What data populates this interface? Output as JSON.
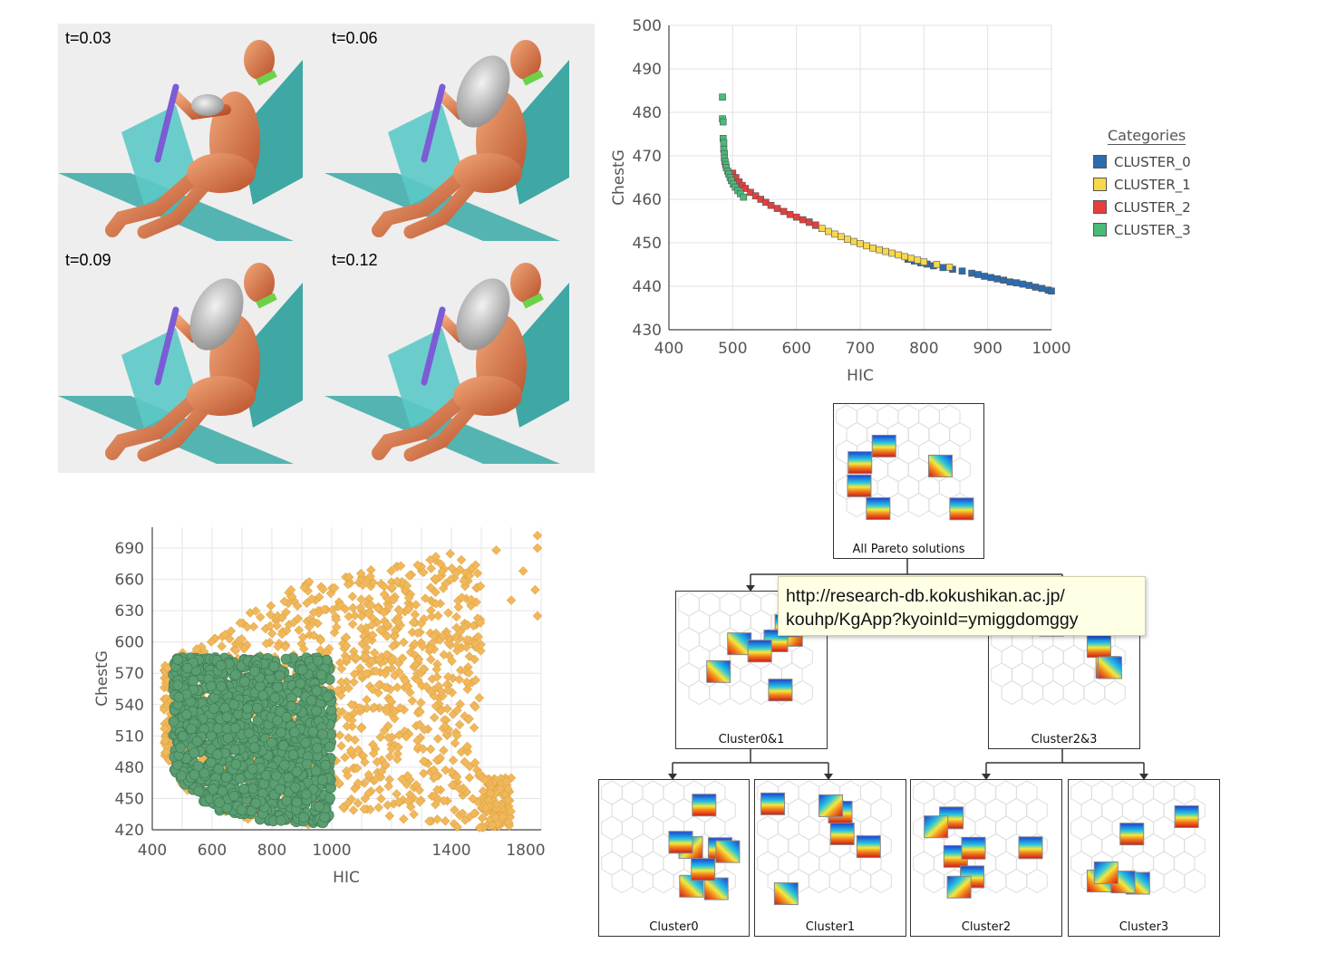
{
  "simulation": {
    "frames": [
      {
        "label": "t=0.03"
      },
      {
        "label": "t=0.06"
      },
      {
        "label": "t=0.09"
      },
      {
        "label": "t=0.12"
      }
    ]
  },
  "chart_top": {
    "type": "scatter",
    "xlabel": "HIC",
    "ylabel": "ChestG",
    "xlim": [
      400,
      1000
    ],
    "ylim": [
      430,
      500
    ],
    "xticks": [
      "400",
      "500",
      "600",
      "700",
      "800",
      "900",
      "1000"
    ],
    "yticks": [
      "430",
      "440",
      "450",
      "460",
      "470",
      "480",
      "490",
      "500"
    ],
    "grid": true,
    "legend": {
      "title": "Categories",
      "position": "right"
    },
    "series": [
      {
        "name": "CLUSTER_0",
        "color": "#2b6cb0",
        "x": [
          775,
          785,
          795,
          805,
          815,
          830,
          845,
          860,
          875,
          885,
          895,
          905,
          915,
          925,
          935,
          945,
          955,
          965,
          975,
          985,
          995,
          1000
        ],
        "y": [
          446.2,
          445.8,
          445.4,
          445.1,
          444.7,
          444.3,
          443.9,
          443.5,
          443.0,
          442.7,
          442.3,
          442.0,
          441.7,
          441.4,
          441.0,
          440.8,
          440.5,
          440.2,
          439.8,
          439.5,
          439.1,
          438.9
        ]
      },
      {
        "name": "CLUSTER_1",
        "color": "#f6d84a",
        "x": [
          620,
          630,
          640,
          650,
          660,
          670,
          680,
          690,
          700,
          710,
          720,
          730,
          740,
          750,
          760,
          770,
          780,
          790,
          800,
          820,
          840
        ],
        "y": [
          454.8,
          454.0,
          453.3,
          452.6,
          452.0,
          451.4,
          450.8,
          450.3,
          449.8,
          449.3,
          448.8,
          448.4,
          448.0,
          447.6,
          447.2,
          446.8,
          446.4,
          446.0,
          445.6,
          445.0,
          444.4
        ]
      },
      {
        "name": "CLUSTER_2",
        "color": "#e53e3e",
        "x": [
          500,
          505,
          510,
          515,
          520,
          528,
          536,
          544,
          552,
          560,
          570,
          580,
          590,
          600,
          610,
          620,
          630
        ],
        "y": [
          466.0,
          465.0,
          464.0,
          463.2,
          462.5,
          461.6,
          460.8,
          460.0,
          459.3,
          458.6,
          457.9,
          457.2,
          456.5,
          455.9,
          455.3,
          454.7,
          454.1
        ]
      },
      {
        "name": "CLUSTER_3",
        "color": "#48bb78",
        "x": [
          484,
          484,
          485,
          485,
          486,
          486,
          487,
          487,
          488,
          489,
          490,
          492,
          494,
          496,
          498,
          501,
          504,
          508,
          512,
          517
        ],
        "y": [
          483.5,
          478.5,
          477.8,
          474.0,
          473.0,
          471.5,
          470.5,
          469.5,
          468.7,
          468.0,
          467.3,
          466.5,
          465.8,
          465.0,
          464.3,
          463.5,
          462.8,
          462.0,
          461.3,
          460.5
        ]
      }
    ]
  },
  "chart_bottom": {
    "type": "scatter",
    "xlabel": "HIC",
    "ylabel": "ChestG",
    "xlim": [
      400,
      1700
    ],
    "ylim": [
      420,
      710
    ],
    "xticks": [
      "400",
      "600",
      "800",
      "1000",
      "1400",
      "1800"
    ],
    "xtick_values": [
      400,
      600,
      800,
      1000,
      1400,
      1800
    ],
    "yticks": [
      "420",
      "450",
      "480",
      "510",
      "540",
      "570",
      "600",
      "630",
      "660",
      "690"
    ],
    "grid": true,
    "series": [
      {
        "name": "",
        "color": "#f0b85a",
        "marker": "diamond",
        "region": "all-solutions"
      },
      {
        "name": "",
        "color": "#5a9e72",
        "marker": "circle",
        "region": "HIC<=1000, ChestG<=585"
      }
    ]
  },
  "tree": {
    "nodes": [
      {
        "id": "root",
        "caption": "All Pareto solutions"
      },
      {
        "id": "c01",
        "caption": "Cluster0&1"
      },
      {
        "id": "c23",
        "caption": "Cluster2&3"
      },
      {
        "id": "c0",
        "caption": "Cluster0"
      },
      {
        "id": "c1",
        "caption": "Cluster1"
      },
      {
        "id": "c2",
        "caption": "Cluster2"
      },
      {
        "id": "c3",
        "caption": "Cluster3"
      }
    ]
  },
  "tooltip": {
    "line1": "http://research-db.kokushikan.ac.jp/",
    "line2": "kouhp/KgApp?kyoinId=ymiggdomggy"
  }
}
